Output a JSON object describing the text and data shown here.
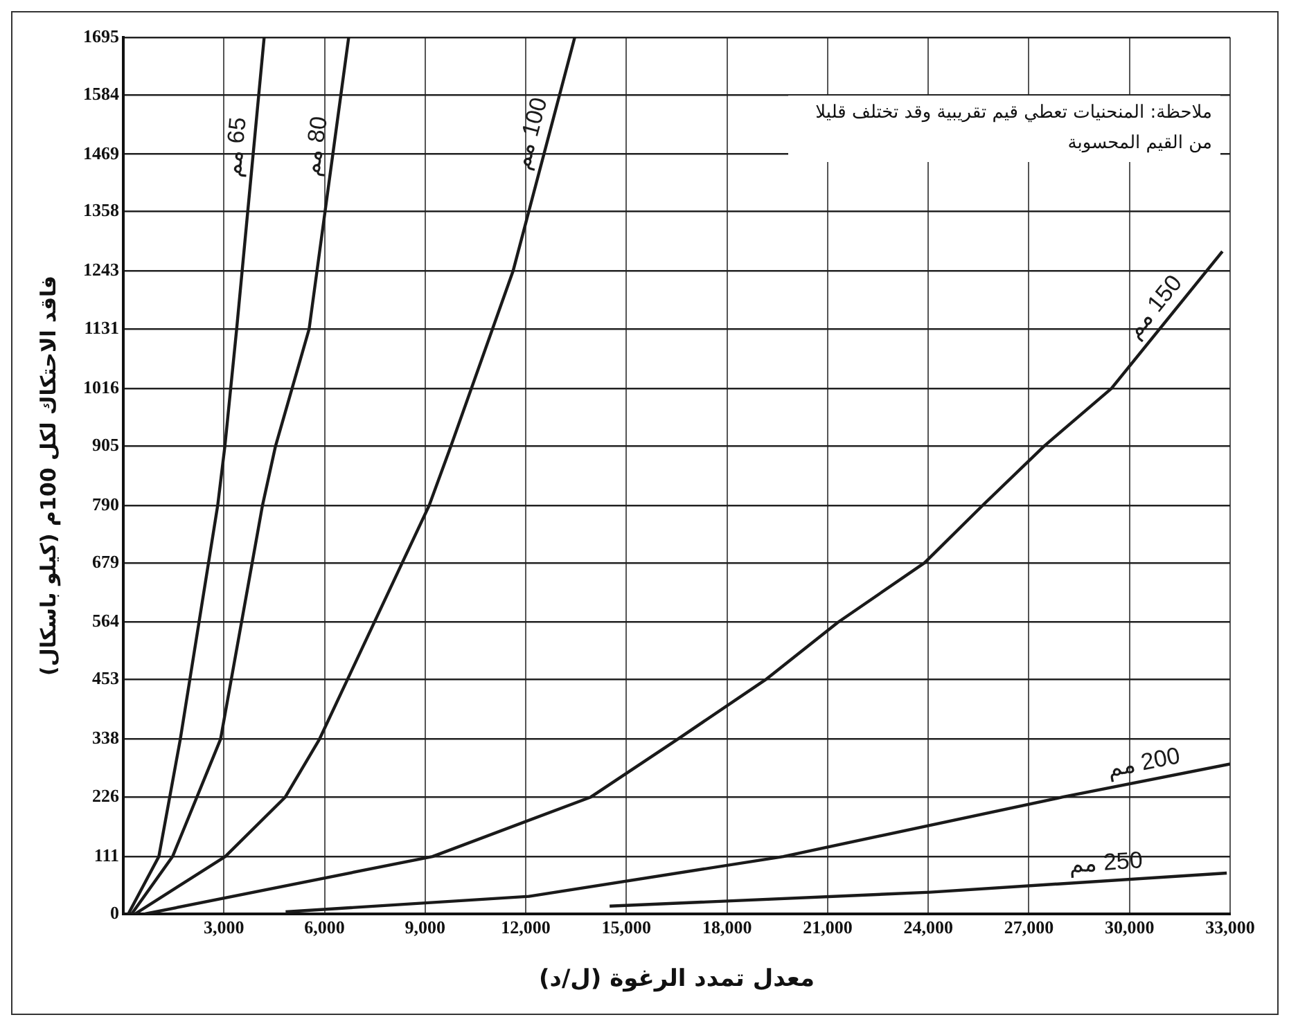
{
  "chart_data": {
    "type": "line",
    "xlabel": "معدل تمدد الرغوة (ل/د)",
    "ylabel": "فاقد الاحتكاك لكل 100م (كيلو باسكال)",
    "xlim": [
      0,
      33000
    ],
    "xticks": [
      {
        "value": 3000,
        "label": "3,000"
      },
      {
        "value": 6000,
        "label": "6,000"
      },
      {
        "value": 9000,
        "label": "9,000"
      },
      {
        "value": 12000,
        "label": "12,000"
      },
      {
        "value": 15000,
        "label": "15,000"
      },
      {
        "value": 18000,
        "label": "18,000"
      },
      {
        "value": 21000,
        "label": "21,000"
      },
      {
        "value": 24000,
        "label": "24,000"
      },
      {
        "value": 27000,
        "label": "27,000"
      },
      {
        "value": 30000,
        "label": "30,000"
      },
      {
        "value": 33000,
        "label": "33,000"
      }
    ],
    "ylim": [
      0,
      1695
    ],
    "yticks": [
      0,
      111,
      226,
      338,
      453,
      564,
      679,
      790,
      905,
      1016,
      1131,
      1243,
      1358,
      1469,
      1584,
      1695
    ],
    "grid": true,
    "legend": false,
    "marker": "none",
    "series": [
      {
        "name": "65 مم",
        "color": "#1a1a1a",
        "x": [
          150,
          1060,
          1700,
          2815,
          3030,
          3380,
          4200
        ],
        "values": [
          0,
          111,
          338,
          790,
          905,
          1131,
          1695
        ]
      },
      {
        "name": "80 مم",
        "color": "#1a1a1a",
        "x": [
          250,
          1470,
          2900,
          4150,
          4540,
          5540,
          6720
        ],
        "values": [
          0,
          111,
          338,
          790,
          905,
          1131,
          1695
        ]
      },
      {
        "name": "100 مم",
        "color": "#1a1a1a",
        "x": [
          350,
          3040,
          4830,
          5850,
          9120,
          9770,
          11620,
          13460
        ],
        "values": [
          0,
          111,
          226,
          338,
          790,
          905,
          1243,
          1695
        ]
      },
      {
        "name": "150 مم",
        "color": "#1a1a1a",
        "x": [
          650,
          9220,
          13940,
          16530,
          19150,
          21310,
          23890,
          25620,
          27460,
          29460,
          32770
        ],
        "values": [
          0,
          111,
          226,
          338,
          453,
          564,
          679,
          790,
          905,
          1016,
          1281
        ]
      },
      {
        "name": "200 مم",
        "color": "#1a1a1a",
        "x": [
          4840,
          12100,
          19680,
          28010,
          33000
        ],
        "values": [
          4,
          34,
          111,
          226,
          290
        ]
      },
      {
        "name": "250 مم",
        "color": "#1a1a1a",
        "x": [
          14500,
          24060,
          32900
        ],
        "values": [
          15,
          42,
          79
        ]
      }
    ],
    "annotations": [
      "ملاحظة: المنحنيات تعطي قيم تقريبية وقد تختلف قليلا من القيم المحسوبة"
    ]
  }
}
